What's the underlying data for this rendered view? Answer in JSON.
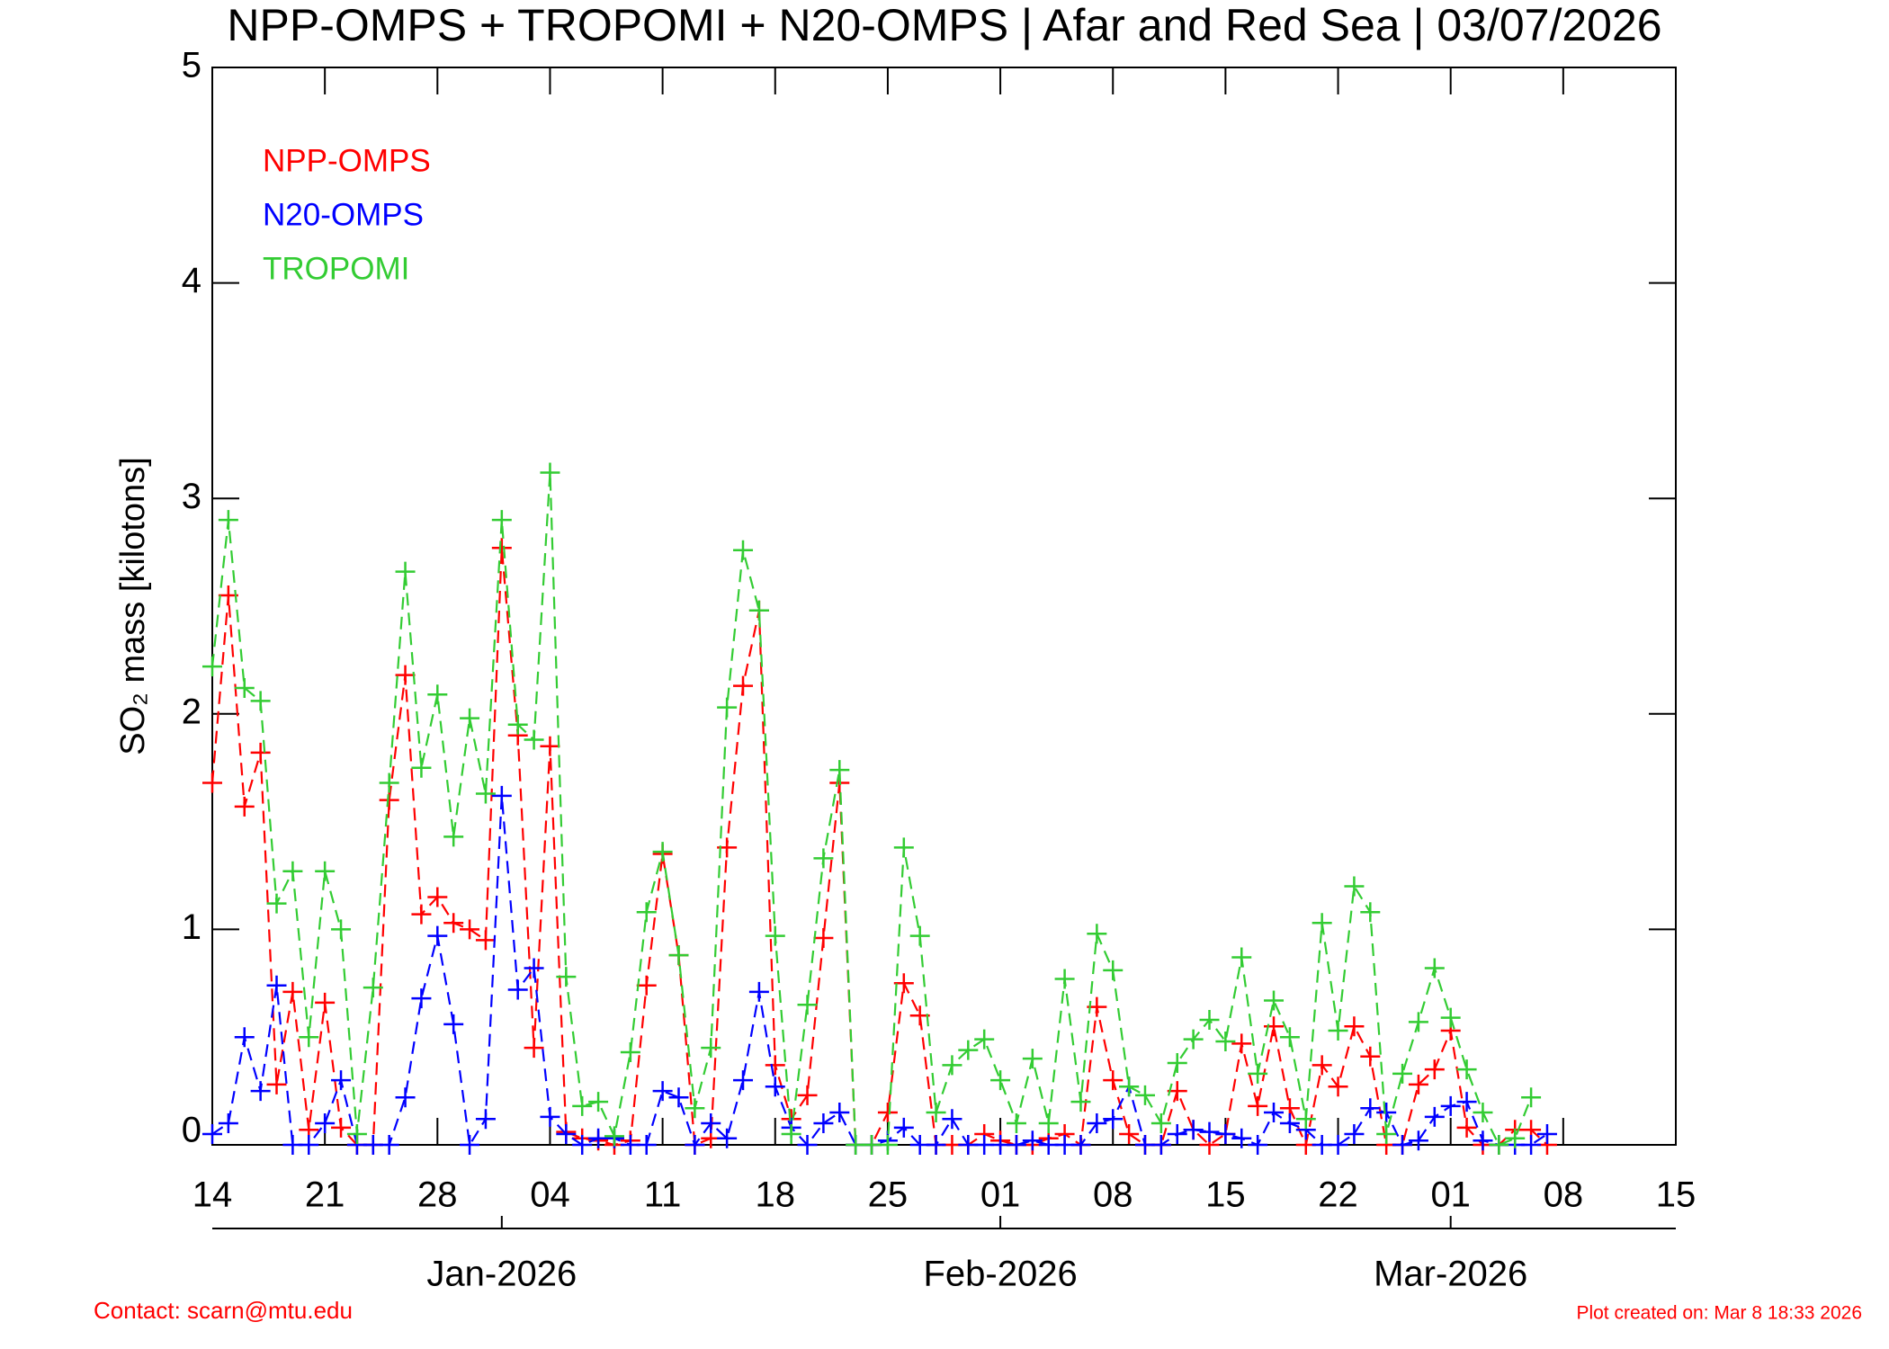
{
  "chart_data": {
    "type": "line",
    "title": "NPP-OMPS + TROPOMI + N20-OMPS | Afar and Red Sea | 03/07/2026",
    "y_label": "SO₂ mass [kilotons]",
    "x": [
      "2025-12-14",
      "2025-12-15",
      "2025-12-16",
      "2025-12-17",
      "2025-12-18",
      "2025-12-19",
      "2025-12-20",
      "2025-12-21",
      "2025-12-22",
      "2025-12-23",
      "2025-12-24",
      "2025-12-25",
      "2025-12-26",
      "2025-12-27",
      "2025-12-28",
      "2025-12-29",
      "2025-12-30",
      "2025-12-31",
      "2026-01-01",
      "2026-01-02",
      "2026-01-03",
      "2026-01-04",
      "2026-01-05",
      "2026-01-06",
      "2026-01-07",
      "2026-01-08",
      "2026-01-09",
      "2026-01-10",
      "2026-01-11",
      "2026-01-12",
      "2026-01-13",
      "2026-01-14",
      "2026-01-15",
      "2026-01-16",
      "2026-01-17",
      "2026-01-18",
      "2026-01-19",
      "2026-01-20",
      "2026-01-21",
      "2026-01-22",
      "2026-01-23",
      "2026-01-24",
      "2026-01-25",
      "2026-01-26",
      "2026-01-27",
      "2026-01-28",
      "2026-01-29",
      "2026-01-30",
      "2026-01-31",
      "2026-02-01",
      "2026-02-02",
      "2026-02-03",
      "2026-02-04",
      "2026-02-05",
      "2026-02-06",
      "2026-02-07",
      "2026-02-08",
      "2026-02-09",
      "2026-02-10",
      "2026-02-11",
      "2026-02-12",
      "2026-02-13",
      "2026-02-14",
      "2026-02-15",
      "2026-02-16",
      "2026-02-17",
      "2026-02-18",
      "2026-02-19",
      "2026-02-20",
      "2026-02-21",
      "2026-02-22",
      "2026-02-23",
      "2026-02-24",
      "2026-02-25",
      "2026-02-26",
      "2026-02-27",
      "2026-02-28",
      "2026-03-01",
      "2026-03-02",
      "2026-03-03",
      "2026-03-04",
      "2026-03-05",
      "2026-03-06",
      "2026-03-07"
    ],
    "series": [
      {
        "name": "NPP-OMPS",
        "color": "#ff0000",
        "values": [
          1.68,
          2.55,
          1.57,
          1.82,
          0.28,
          0.71,
          0.07,
          0.66,
          0.08,
          0.0,
          0.0,
          1.6,
          2.18,
          1.07,
          1.15,
          1.03,
          1.0,
          0.95,
          2.77,
          1.9,
          0.45,
          1.85,
          0.06,
          0.03,
          0.02,
          0.0,
          0.02,
          0.74,
          1.35,
          0.88,
          0.0,
          0.03,
          1.38,
          2.13,
          2.48,
          0.37,
          0.12,
          0.23,
          0.96,
          1.68,
          0.0,
          0.0,
          0.15,
          0.75,
          0.6,
          0.0,
          0.0,
          0.0,
          0.05,
          0.02,
          0.0,
          0.0,
          0.03,
          0.05,
          0.0,
          0.64,
          0.3,
          0.05,
          0.0,
          0.0,
          0.25,
          0.07,
          0.0,
          0.05,
          0.47,
          0.18,
          0.55,
          0.17,
          0.0,
          0.37,
          0.27,
          0.55,
          0.41,
          0.0,
          0.0,
          0.28,
          0.35,
          0.53,
          0.08,
          0.0,
          0.0,
          0.07,
          0.07,
          0.0
        ]
      },
      {
        "name": "N20-OMPS",
        "color": "#0000ff",
        "values": [
          0.05,
          0.1,
          0.5,
          0.25,
          0.74,
          0.0,
          0.0,
          0.1,
          0.3,
          0.0,
          0.0,
          0.0,
          0.22,
          0.68,
          0.97,
          0.56,
          0.0,
          0.12,
          1.62,
          0.72,
          0.82,
          0.13,
          0.05,
          0.0,
          0.03,
          0.03,
          0.0,
          0.0,
          0.25,
          0.22,
          0.0,
          0.1,
          0.03,
          0.3,
          0.71,
          0.27,
          0.08,
          0.0,
          0.1,
          0.15,
          0.0,
          0.0,
          0.02,
          0.08,
          0.0,
          0.0,
          0.12,
          0.0,
          0.0,
          0.0,
          0.0,
          0.02,
          0.0,
          0.0,
          0.0,
          0.1,
          0.12,
          0.27,
          0.0,
          0.0,
          0.05,
          0.07,
          0.06,
          0.05,
          0.03,
          0.0,
          0.15,
          0.1,
          0.07,
          0.0,
          0.0,
          0.05,
          0.17,
          0.15,
          0.0,
          0.02,
          0.13,
          0.18,
          0.2,
          0.02,
          0.0,
          0.0,
          0.0,
          0.05
        ]
      },
      {
        "name": "TROPOMI",
        "color": "#33cc33",
        "values": [
          2.22,
          2.9,
          2.12,
          2.06,
          1.12,
          1.27,
          0.5,
          1.27,
          1.0,
          0.05,
          0.73,
          1.68,
          2.66,
          1.75,
          2.09,
          1.43,
          1.98,
          1.63,
          2.9,
          1.95,
          1.88,
          3.12,
          0.78,
          0.18,
          0.2,
          0.04,
          0.43,
          1.08,
          1.36,
          0.88,
          0.17,
          0.45,
          2.03,
          2.76,
          2.48,
          0.97,
          0.05,
          0.65,
          1.33,
          1.74,
          0.0,
          0.0,
          0.0,
          1.38,
          0.97,
          0.15,
          0.37,
          0.44,
          0.49,
          0.3,
          0.1,
          0.4,
          0.1,
          0.77,
          0.2,
          0.98,
          0.81,
          0.27,
          0.23,
          0.1,
          0.38,
          0.49,
          0.58,
          0.48,
          0.87,
          0.33,
          0.67,
          0.5,
          0.12,
          1.03,
          0.53,
          1.2,
          1.08,
          0.05,
          0.33,
          0.57,
          0.82,
          0.59,
          0.35,
          0.15,
          0.0,
          0.03,
          0.22,
          null
        ]
      }
    ],
    "xlim": [
      "2025-12-14",
      "2026-03-15"
    ],
    "xticks": [
      {
        "value": "2025-12-14",
        "label": "14"
      },
      {
        "value": "2025-12-21",
        "label": "21"
      },
      {
        "value": "2025-12-28",
        "label": "28"
      },
      {
        "value": "2026-01-04",
        "label": "04"
      },
      {
        "value": "2026-01-11",
        "label": "11"
      },
      {
        "value": "2026-01-18",
        "label": "18"
      },
      {
        "value": "2026-01-25",
        "label": "25"
      },
      {
        "value": "2026-02-01",
        "label": "01"
      },
      {
        "value": "2026-02-08",
        "label": "08"
      },
      {
        "value": "2026-02-15",
        "label": "15"
      },
      {
        "value": "2026-02-22",
        "label": "22"
      },
      {
        "value": "2026-03-01",
        "label": "01"
      },
      {
        "value": "2026-03-08",
        "label": "08"
      },
      {
        "value": "2026-03-15",
        "label": "15"
      }
    ],
    "month_ticks": [
      {
        "value": "2026-01-01",
        "label": "Jan-2026"
      },
      {
        "value": "2026-02-01",
        "label": "Feb-2026"
      },
      {
        "value": "2026-03-01",
        "label": "Mar-2026"
      }
    ],
    "ylim": [
      0,
      5
    ],
    "yticks": [
      0,
      1,
      2,
      3,
      4,
      5
    ],
    "contact": "Contact: scarn@mtu.edu",
    "created": "Plot created on: Mar  8 18:33 2026"
  }
}
